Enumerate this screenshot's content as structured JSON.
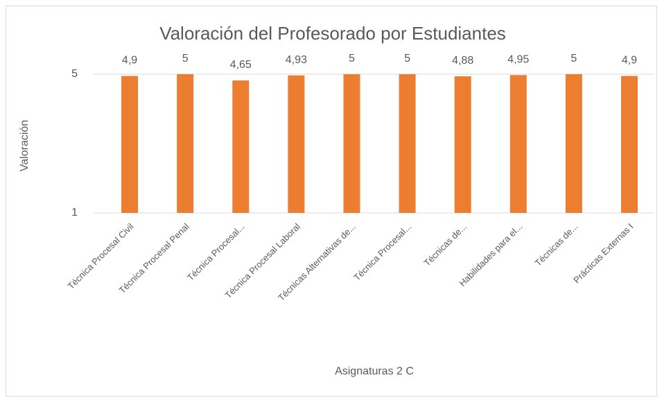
{
  "chart_data": {
    "type": "bar",
    "title": "Valoración del Profesorado por Estudiantes",
    "x_label": "Asignaturas 2 C",
    "y_label": "Valoración",
    "categories": [
      "Técnica Procesal Civil",
      "Técnica Procesal Penal",
      "Técnica Procesal...",
      "Técnica Procesal Laboral",
      "Técnicas Alternativas de...",
      "Técnica Procesal...",
      "Técnicas de...",
      "Habilidades para el...",
      "Técnicas de...",
      "Prácticas Externas I"
    ],
    "values": [
      4.9,
      5,
      4.65,
      4.93,
      5,
      5,
      4.88,
      4.95,
      5,
      4.9
    ],
    "value_labels": [
      "4,9",
      "5",
      "4,65",
      "4,93",
      "5",
      "5",
      "4,88",
      "4,95",
      "5",
      "4,9"
    ],
    "color": "#ed7d31",
    "ylim": [
      1,
      5
    ],
    "yticks": [
      1,
      5
    ],
    "log_scale": true,
    "grid": true
  }
}
